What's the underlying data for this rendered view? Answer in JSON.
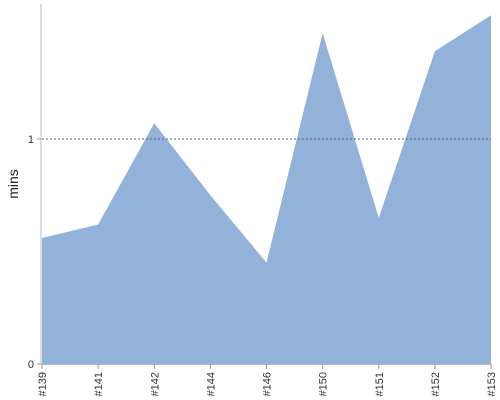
{
  "chart_data": {
    "type": "area",
    "categories": [
      "#139",
      "#141",
      "#142",
      "#144",
      "#146",
      "#150",
      "#151",
      "#152",
      "#153"
    ],
    "series": [
      {
        "values": [
          0.56,
          0.62,
          1.07,
          0.75,
          0.45,
          1.47,
          0.65,
          1.39,
          1.55
        ]
      }
    ],
    "xlabel": "",
    "ylabel": "mins",
    "ylim": [
      0,
      1.6
    ],
    "yticks": [
      0,
      1
    ],
    "reference_line": 1,
    "grid": false,
    "legend": "none",
    "color": "#92b2da"
  }
}
